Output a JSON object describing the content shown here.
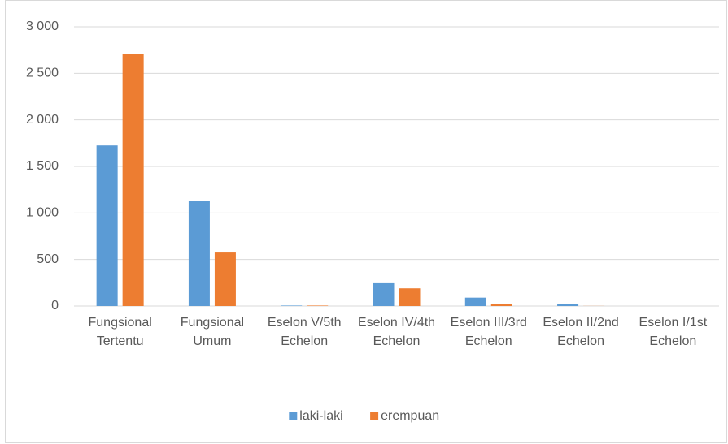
{
  "chart_data": {
    "type": "bar",
    "categories": [
      "Fungsional Tertentu",
      "Fungsional Umum",
      "Eselon V/5th Echelon",
      "Eselon IV/4th Echelon",
      "Eselon III/3rd Echelon",
      "Eselon II/2nd Echelon",
      "Eselon I/1st Echelon"
    ],
    "series": [
      {
        "name": "laki-laki",
        "color": "#5b9bd5",
        "values": [
          1725,
          1125,
          5,
          245,
          90,
          18,
          0
        ]
      },
      {
        "name": "erempuan",
        "color": "#ed7d31",
        "values": [
          2710,
          575,
          5,
          190,
          25,
          1,
          0
        ]
      }
    ],
    "ylim": [
      0,
      3000
    ],
    "yticks": [
      0,
      500,
      {
        "value": 1000,
        "label": "1 000"
      },
      {
        "value": 1500,
        "label": "1 500"
      },
      {
        "value": 2000,
        "label": "2 000"
      },
      {
        "value": 2500,
        "label": "2 500"
      },
      {
        "value": 3000,
        "label": "3 000"
      }
    ],
    "grid": true,
    "legend": "bottom"
  }
}
